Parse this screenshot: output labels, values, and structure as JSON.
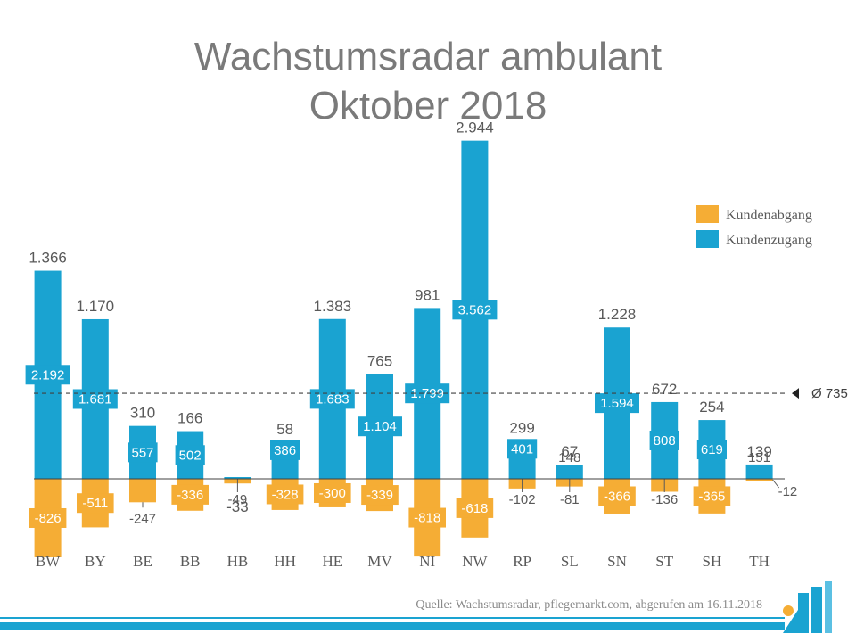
{
  "chart_data": {
    "type": "bar",
    "title": [
      "Wachstumsradar ambulant",
      "Oktober 2018"
    ],
    "categories": [
      "BW",
      "BY",
      "BE",
      "BB",
      "HB",
      "HH",
      "HE",
      "MV",
      "NI",
      "NW",
      "RP",
      "SL",
      "SN",
      "ST",
      "SH",
      "TH"
    ],
    "series": [
      {
        "name": "Kundenzugang",
        "color": "#1aa3d1",
        "values": [
          2192,
          1681,
          557,
          502,
          16,
          386,
          1683,
          1104,
          1799,
          3562,
          401,
          148,
          1594,
          808,
          619,
          151
        ],
        "labels": [
          "2.192",
          "1.681",
          "557",
          "502",
          "",
          "386",
          "1.683",
          "1.104",
          "1.799",
          "3.562",
          "401",
          "148",
          "1.594",
          "808",
          "619",
          "151"
        ]
      },
      {
        "name": "Kundenabgang",
        "color": "#f5ad35",
        "values": [
          -826,
          -511,
          -247,
          -336,
          -49,
          -328,
          -300,
          -339,
          -818,
          -618,
          -102,
          -81,
          -366,
          -136,
          -365,
          -12
        ],
        "labels": [
          "-826",
          "-511",
          "-247",
          "-336",
          "-49",
          "-328",
          "-300",
          "-339",
          "-818",
          "-618",
          "-102",
          "-81",
          "-366",
          "-136",
          "-365",
          "-12"
        ]
      }
    ],
    "net": {
      "values": [
        1366,
        1170,
        310,
        166,
        -33,
        58,
        1383,
        765,
        981,
        2944,
        299,
        67,
        1228,
        672,
        254,
        139
      ],
      "labels": [
        "1.366",
        "1.170",
        "310",
        "166",
        "-33",
        "58",
        "1.383",
        "765",
        "981",
        "2.944",
        "299",
        "67",
        "1.228",
        "672",
        "254",
        "139"
      ]
    },
    "average": {
      "value": 735,
      "label": "Ø 735"
    },
    "legend": {
      "position": "top-right",
      "entries": [
        {
          "label": "Kundenabgang",
          "color": "#f5ad35"
        },
        {
          "label": "Kundenzugang",
          "color": "#1aa3d1"
        }
      ]
    },
    "grid": false,
    "xlabel": "",
    "ylabel": ""
  },
  "source": "Quelle: Wachstumsradar, pflegemarkt.com, abgerufen am 16.11.2018",
  "colors": {
    "accent": "#1aa3d1",
    "decline": "#f5ad35",
    "text": "#595959",
    "title": "#7a7a7a"
  }
}
